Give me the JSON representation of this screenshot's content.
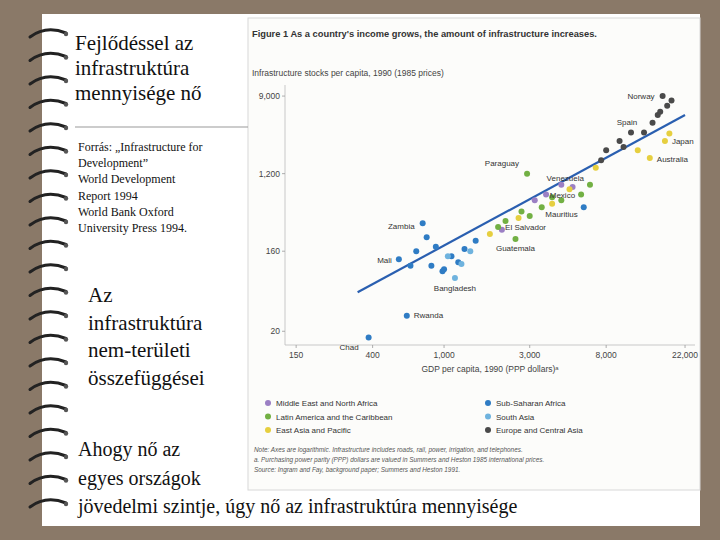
{
  "slide": {
    "title": [
      "Fejlődéssel az",
      "infrastruktúra",
      "mennyisége nő"
    ],
    "source": [
      "Forrás: „Infrastructure for",
      "Development”",
      "World Development",
      "Report 1994",
      "World Bank Oxford",
      "University Press 1994."
    ],
    "subtitle": [
      "Az",
      "infrastruktúra",
      "nem-területi",
      "összefüggései"
    ],
    "caption": [
      "Ahogy nő az",
      "egyes országok",
      "jövedelmi szintje, úgy nő az infrastruktúra mennyisége"
    ]
  },
  "chart_data": {
    "type": "scatter",
    "title": "Figure 1  As a country's income grows, the amount of infrastructure increases.",
    "y_label": "Infrastructure stocks per capita, 1990 (1985 prices)",
    "x_label": "GDP per capita, 1990 (PPP dollars)ᵃ",
    "log": true,
    "marker": "circle",
    "xlim": [
      130,
      25000
    ],
    "ylim": [
      14,
      12000
    ],
    "xticks": [
      150,
      400,
      {
        "value": 1000,
        "label": "1,000"
      },
      {
        "value": 3000,
        "label": "3,000"
      },
      {
        "value": 8000,
        "label": "8,000"
      },
      {
        "value": 22000,
        "label": "22,000"
      }
    ],
    "yticks": [
      20,
      160,
      {
        "value": 1200,
        "label": "1,200"
      },
      {
        "value": 9000,
        "label": "9,000"
      }
    ],
    "series": [
      {
        "name": "Middle East and North Africa",
        "color": "#9b7fc4",
        "x": [
          3200,
          3700,
          4500,
          2100,
          5200
        ],
        "values": [
          600,
          700,
          900,
          280,
          850
        ]
      },
      {
        "name": "Latin America and the Caribbean",
        "color": "#72b043",
        "x": [
          2900,
          2000,
          2500,
          6500,
          5800,
          3000,
          3500,
          4000,
          4500,
          2200,
          2700
        ],
        "values": [
          1200,
          300,
          220,
          900,
          700,
          400,
          500,
          650,
          600,
          350,
          450
        ]
      },
      {
        "name": "East Asia and Pacific",
        "color": "#e6cf3f",
        "x": [
          17000,
          14000,
          1800,
          2600,
          4000,
          5000,
          7000,
          12000,
          18000
        ],
        "values": [
          2800,
          1800,
          250,
          380,
          550,
          800,
          1400,
          2200,
          3400
        ]
      },
      {
        "name": "Sub-Saharan Africa",
        "color": "#2f7cc4",
        "x": [
          380,
          620,
          560,
          760,
          800,
          700,
          900,
          850,
          980,
          1100,
          1200,
          1300,
          1000,
          650,
          1500,
          6000
        ],
        "values": [
          17,
          30,
          130,
          330,
          230,
          160,
          180,
          110,
          95,
          140,
          120,
          170,
          100,
          110,
          210,
          500
        ]
      },
      {
        "name": "South Asia",
        "color": "#6fb3de",
        "x": [
          1150,
          1050,
          1250,
          1400
        ],
        "values": [
          80,
          140,
          115,
          160
        ]
      },
      {
        "name": "Europe and Central Asia",
        "color": "#4a4a4a",
        "x": [
          16500,
          11000,
          9500,
          7500,
          13000,
          15500,
          17500,
          18500,
          14500,
          8000,
          10000,
          16000
        ],
        "values": [
          9000,
          3500,
          2800,
          1700,
          3500,
          5500,
          7000,
          8000,
          4500,
          2200,
          2400,
          6000
        ]
      }
    ],
    "trend_line": {
      "x": [
        330,
        22000
      ],
      "values": [
        55,
        5500
      ]
    },
    "annotations": [
      {
        "text": "Norway",
        "x": 16500,
        "y": 9000
      },
      {
        "text": "Spain",
        "x": 11000,
        "y": 3500
      },
      {
        "text": "Japan",
        "x": 17000,
        "y": 2800
      },
      {
        "text": "Paraguay",
        "x": 2900,
        "y": 1200
      },
      {
        "text": "Venezuela",
        "x": 6500,
        "y": 900
      },
      {
        "text": "Mexico",
        "x": 5800,
        "y": 700
      },
      {
        "text": "Mauritius",
        "x": 6000,
        "y": 500
      },
      {
        "text": "Australia",
        "x": 14000,
        "y": 1800
      },
      {
        "text": "Zambia",
        "x": 760,
        "y": 330
      },
      {
        "text": "El Salvador",
        "x": 2000,
        "y": 300
      },
      {
        "text": "Guatemala",
        "x": 2500,
        "y": 220
      },
      {
        "text": "Mali",
        "x": 560,
        "y": 130
      },
      {
        "text": "Bangladesh",
        "x": 1150,
        "y": 80
      },
      {
        "text": "Chad",
        "x": 380,
        "y": 17
      },
      {
        "text": "Rwanda",
        "x": 620,
        "y": 30
      }
    ],
    "notes": [
      "Note: Axes are logarithmic. Infrastructure includes roads, rail, power, irrigation, and telephones.",
      "a. Purchasing power parity (PPP) dollars are valued in Summers and Heston 1985 international prices.",
      "Source: Ingram and Fay, background paper; Summers and Heston 1991."
    ]
  }
}
